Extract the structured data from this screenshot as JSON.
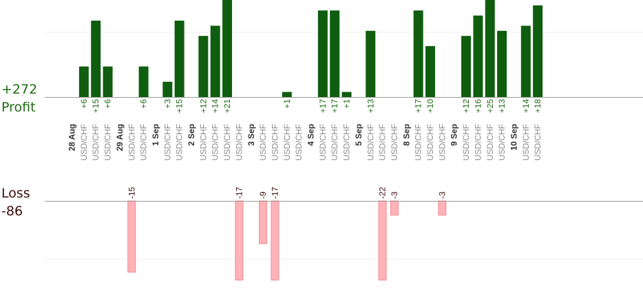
{
  "summary": {
    "profit_total": "+272",
    "profit_label": "Profit",
    "loss_label": "Loss",
    "loss_total": "-86"
  },
  "colors": {
    "profit_bar": "#0f5e0f",
    "loss_bar": "#ffb3b8",
    "profit_text": "#1e6a12",
    "loss_text": "#3d0d0d",
    "axis": "#9a9a9a",
    "grid": "#ececec",
    "trade_label": "#8c8c8c",
    "date_label": "#333333"
  },
  "chart_data": {
    "type": "bar",
    "profit_ylim": [
      0,
      22
    ],
    "loss_ylim": [
      0,
      17
    ],
    "columns": [
      {
        "date": "28 Aug"
      },
      {
        "symbol": "USD/CHF",
        "value": 6,
        "label": "+6"
      },
      {
        "symbol": "USD/CHF",
        "value": 15,
        "label": "+15"
      },
      {
        "symbol": "USD/CHF",
        "value": 6,
        "label": "+6"
      },
      {
        "date": "29 Aug"
      },
      {
        "symbol": "USD/CHF",
        "value": -15,
        "label": "-15"
      },
      {
        "symbol": "USD/CHF",
        "value": 6,
        "label": "+6"
      },
      {
        "date": "1 Sep"
      },
      {
        "symbol": "USD/CHF",
        "value": 3,
        "label": "+3"
      },
      {
        "symbol": "USD/CHF",
        "value": 15,
        "label": "+15"
      },
      {
        "date": "2 Sep"
      },
      {
        "symbol": "USD/CHF",
        "value": 12,
        "label": "+12"
      },
      {
        "symbol": "USD/CHF",
        "value": 14,
        "label": "+14"
      },
      {
        "symbol": "USD/CHF",
        "value": 21,
        "label": "+21"
      },
      {
        "symbol": "USD/CHF",
        "value": -17,
        "label": "-17"
      },
      {
        "date": "3 Sep"
      },
      {
        "symbol": "USD/CHF",
        "value": -9,
        "label": "-9"
      },
      {
        "symbol": "USD/CHF",
        "value": -17,
        "label": "-17"
      },
      {
        "symbol": "USD/CHF",
        "value": 1,
        "label": "+1"
      },
      {
        "symbol": "USD/CHF"
      },
      {
        "date": "4 Sep"
      },
      {
        "symbol": "USD/CHF",
        "value": 17,
        "label": "+17"
      },
      {
        "symbol": "USD/CHF",
        "value": 17,
        "label": "+17"
      },
      {
        "symbol": "USD/CHF",
        "value": 1,
        "label": "+1"
      },
      {
        "date": "5 Sep"
      },
      {
        "symbol": "USD/CHF",
        "value": 13,
        "label": "+13"
      },
      {
        "symbol": "USD/CHF",
        "value": -22,
        "label": "-22"
      },
      {
        "symbol": "USD/CHF",
        "value": -3,
        "label": "-3"
      },
      {
        "date": "8 Sep"
      },
      {
        "symbol": "USD/CHF",
        "value": 17,
        "label": "+17"
      },
      {
        "symbol": "USD/CHF",
        "value": 10,
        "label": "+10"
      },
      {
        "symbol": "USD/CHF",
        "value": -3,
        "label": "-3"
      },
      {
        "date": "9 Sep"
      },
      {
        "symbol": "USD/CHF",
        "value": 12,
        "label": "+12"
      },
      {
        "symbol": "USD/CHF",
        "value": 16,
        "label": "+16"
      },
      {
        "symbol": "USD/CHF",
        "value": 25,
        "label": "+25"
      },
      {
        "symbol": "USD/CHF",
        "value": 13,
        "label": "+13"
      },
      {
        "date": "10 Sep"
      },
      {
        "symbol": "USD/CHF",
        "value": 14,
        "label": "+14"
      },
      {
        "symbol": "USD/CHF",
        "value": 18,
        "label": "+18"
      }
    ]
  }
}
